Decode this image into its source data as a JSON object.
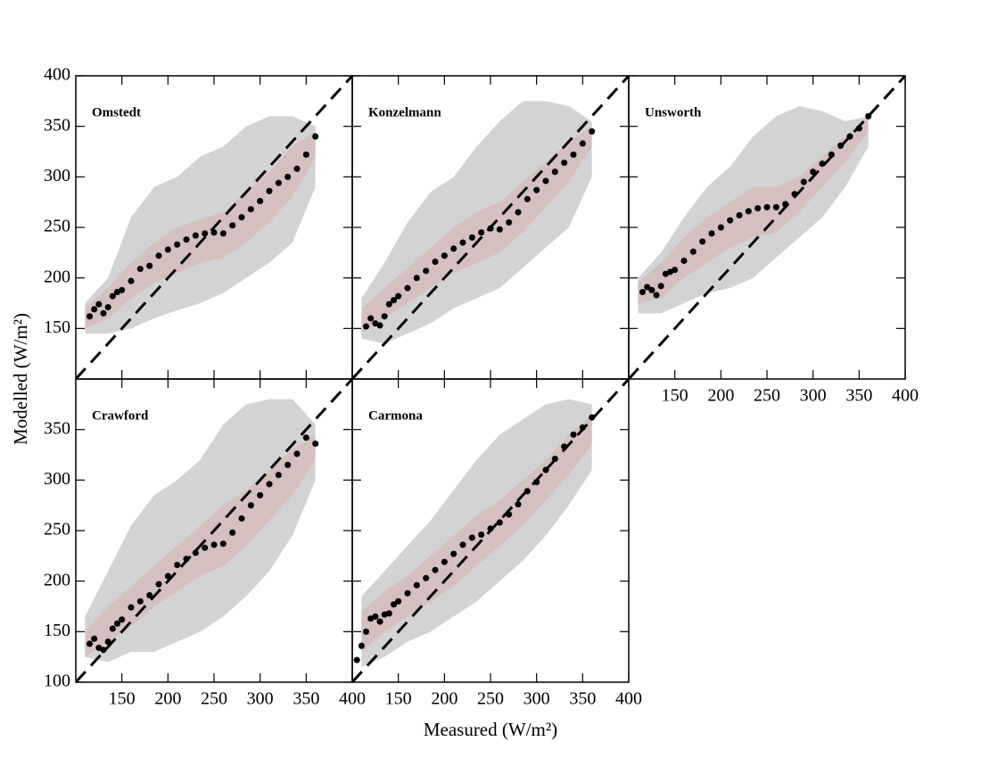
{
  "x_label": "Measured (W/m²)",
  "y_label": "Modelled (W/m²)",
  "chart_data": [
    {
      "type": "scatter",
      "title": "Omstedt",
      "x": [
        115,
        120,
        125,
        130,
        135,
        140,
        145,
        150,
        160,
        170,
        180,
        190,
        200,
        210,
        220,
        230,
        240,
        250,
        260,
        270,
        280,
        290,
        300,
        310,
        320,
        330,
        340,
        350,
        360
      ],
      "values": [
        162,
        169,
        174,
        165,
        171,
        182,
        186,
        188,
        197,
        209,
        212,
        222,
        228,
        233,
        238,
        242,
        244,
        245,
        244,
        252,
        260,
        268,
        276,
        286,
        294,
        300,
        308,
        322,
        340
      ],
      "color": "#000000",
      "band_x": [
        110,
        135,
        160,
        185,
        210,
        235,
        260,
        285,
        310,
        335,
        360
      ],
      "outer_band": {
        "lower": [
          145,
          145,
          150,
          160,
          168,
          175,
          185,
          200,
          215,
          235,
          290
        ],
        "upper": [
          175,
          200,
          260,
          290,
          300,
          320,
          330,
          350,
          360,
          360,
          350
        ],
        "color": "#c4c4c4"
      },
      "inner_band": {
        "lower": [
          150,
          160,
          180,
          195,
          205,
          215,
          220,
          235,
          255,
          280,
          320
        ],
        "upper": [
          170,
          190,
          215,
          235,
          250,
          258,
          265,
          285,
          305,
          330,
          345
        ],
        "color": "#d6b9b9"
      },
      "xlim": [
        100,
        400
      ],
      "ylim": [
        100,
        400
      ],
      "xticks": [
        150,
        200,
        250,
        300,
        350,
        400
      ],
      "yticks": [
        150,
        200,
        250,
        300,
        350,
        400
      ],
      "x_tick_labels": false,
      "y_tick_labels": true,
      "reference_line": "dashed"
    },
    {
      "type": "scatter",
      "title": "Konzelmann",
      "x": [
        115,
        120,
        125,
        130,
        135,
        140,
        145,
        150,
        160,
        170,
        180,
        190,
        200,
        210,
        220,
        230,
        240,
        250,
        260,
        270,
        280,
        290,
        300,
        310,
        320,
        330,
        340,
        350,
        360
      ],
      "values": [
        152,
        160,
        155,
        153,
        162,
        174,
        178,
        182,
        190,
        200,
        207,
        216,
        222,
        229,
        235,
        240,
        245,
        249,
        248,
        255,
        265,
        278,
        287,
        296,
        305,
        314,
        322,
        333,
        345
      ],
      "color": "#000000",
      "band_x": [
        110,
        135,
        160,
        185,
        210,
        235,
        260,
        285,
        310,
        335,
        360
      ],
      "outer_band": {
        "lower": [
          140,
          135,
          145,
          155,
          170,
          180,
          190,
          210,
          230,
          250,
          300
        ],
        "upper": [
          180,
          215,
          255,
          285,
          300,
          330,
          355,
          375,
          375,
          370,
          355
        ],
        "color": "#c4c4c4"
      },
      "inner_band": {
        "lower": [
          145,
          160,
          175,
          190,
          205,
          215,
          225,
          245,
          270,
          295,
          330
        ],
        "upper": [
          170,
          190,
          210,
          230,
          250,
          265,
          275,
          295,
          315,
          335,
          350
        ],
        "color": "#d6b9b9"
      },
      "xlim": [
        100,
        400
      ],
      "ylim": [
        100,
        400
      ],
      "xticks": [
        150,
        200,
        250,
        300,
        350,
        400
      ],
      "yticks": [
        150,
        200,
        250,
        300,
        350,
        400
      ],
      "x_tick_labels": false,
      "y_tick_labels": false,
      "reference_line": "dashed"
    },
    {
      "type": "scatter",
      "title": "Unsworth",
      "x": [
        115,
        120,
        125,
        130,
        135,
        140,
        145,
        150,
        160,
        170,
        180,
        190,
        200,
        210,
        220,
        230,
        240,
        250,
        260,
        270,
        280,
        290,
        300,
        310,
        320,
        330,
        340,
        350,
        360
      ],
      "values": [
        186,
        191,
        188,
        183,
        192,
        204,
        206,
        208,
        217,
        226,
        236,
        244,
        250,
        257,
        262,
        266,
        269,
        270,
        270,
        273,
        283,
        295,
        305,
        313,
        322,
        331,
        340,
        348,
        360
      ],
      "color": "#000000",
      "band_x": [
        110,
        135,
        160,
        185,
        210,
        235,
        260,
        285,
        310,
        335,
        360
      ],
      "outer_band": {
        "lower": [
          165,
          165,
          175,
          185,
          190,
          200,
          220,
          240,
          260,
          290,
          330
        ],
        "upper": [
          200,
          225,
          260,
          290,
          310,
          340,
          360,
          370,
          365,
          355,
          360
        ],
        "color": "#c4c4c4"
      },
      "inner_band": {
        "lower": [
          175,
          180,
          200,
          215,
          230,
          240,
          245,
          265,
          290,
          315,
          345
        ],
        "upper": [
          195,
          215,
          240,
          260,
          275,
          290,
          290,
          300,
          320,
          340,
          360
        ],
        "color": "#d6b9b9"
      },
      "xlim": [
        100,
        400
      ],
      "ylim": [
        100,
        400
      ],
      "xticks": [
        150,
        200,
        250,
        300,
        350,
        400
      ],
      "yticks": [
        150,
        200,
        250,
        300,
        350,
        400
      ],
      "x_tick_labels": true,
      "y_tick_labels": false,
      "reference_line": "dashed"
    },
    {
      "type": "scatter",
      "title": "Crawford",
      "x": [
        115,
        120,
        125,
        130,
        135,
        140,
        145,
        150,
        160,
        170,
        180,
        190,
        200,
        210,
        220,
        230,
        240,
        250,
        260,
        270,
        280,
        290,
        300,
        310,
        320,
        330,
        340,
        350,
        360
      ],
      "values": [
        138,
        143,
        134,
        132,
        140,
        153,
        158,
        162,
        174,
        180,
        186,
        197,
        205,
        216,
        222,
        228,
        233,
        236,
        237,
        248,
        262,
        275,
        285,
        296,
        305,
        315,
        326,
        342,
        336
      ],
      "color": "#000000",
      "band_x": [
        110,
        135,
        160,
        185,
        210,
        235,
        260,
        285,
        310,
        335,
        360
      ],
      "outer_band": {
        "lower": [
          125,
          120,
          130,
          130,
          140,
          150,
          165,
          185,
          210,
          245,
          300
        ],
        "upper": [
          165,
          210,
          255,
          285,
          300,
          320,
          355,
          375,
          380,
          380,
          355
        ],
        "color": "#c4c4c4"
      },
      "inner_band": {
        "lower": [
          125,
          140,
          155,
          175,
          190,
          205,
          215,
          235,
          260,
          285,
          320
        ],
        "upper": [
          150,
          175,
          195,
          215,
          235,
          255,
          275,
          290,
          310,
          330,
          345
        ],
        "color": "#d6b9b9"
      },
      "xlim": [
        100,
        400
      ],
      "ylim": [
        100,
        400
      ],
      "xticks": [
        150,
        200,
        250,
        300,
        350,
        400
      ],
      "yticks": [
        100,
        150,
        200,
        250,
        300,
        350
      ],
      "x_tick_labels": true,
      "y_tick_labels": true,
      "reference_line": "dashed"
    },
    {
      "type": "scatter",
      "title": "Carmona",
      "x": [
        105,
        110,
        115,
        120,
        125,
        130,
        135,
        140,
        145,
        150,
        160,
        170,
        180,
        190,
        200,
        210,
        220,
        230,
        240,
        250,
        260,
        270,
        280,
        290,
        300,
        310,
        320,
        330,
        340,
        350,
        360
      ],
      "values": [
        122,
        136,
        150,
        163,
        165,
        160,
        167,
        168,
        177,
        180,
        188,
        196,
        203,
        211,
        219,
        227,
        236,
        243,
        246,
        252,
        258,
        266,
        276,
        289,
        298,
        310,
        321,
        333,
        345,
        352,
        362
      ],
      "color": "#000000",
      "band_x": [
        110,
        135,
        160,
        185,
        210,
        235,
        260,
        285,
        310,
        335,
        360
      ],
      "outer_band": {
        "lower": [
          115,
          125,
          140,
          150,
          165,
          180,
          200,
          220,
          245,
          275,
          310
        ],
        "upper": [
          185,
          210,
          235,
          260,
          290,
          320,
          345,
          360,
          375,
          380,
          375
        ],
        "color": "#c4c4c4"
      },
      "inner_band": {
        "lower": [
          130,
          150,
          165,
          180,
          195,
          215,
          235,
          255,
          280,
          305,
          335
        ],
        "upper": [
          170,
          190,
          205,
          225,
          245,
          265,
          280,
          300,
          320,
          345,
          365
        ],
        "color": "#d6b9b9"
      },
      "xlim": [
        100,
        400
      ],
      "ylim": [
        100,
        400
      ],
      "xticks": [
        150,
        200,
        250,
        300,
        350,
        400
      ],
      "yticks": [
        150,
        200,
        250,
        300,
        350,
        400
      ],
      "x_tick_labels": true,
      "y_tick_labels": false,
      "reference_line": "dashed"
    }
  ]
}
